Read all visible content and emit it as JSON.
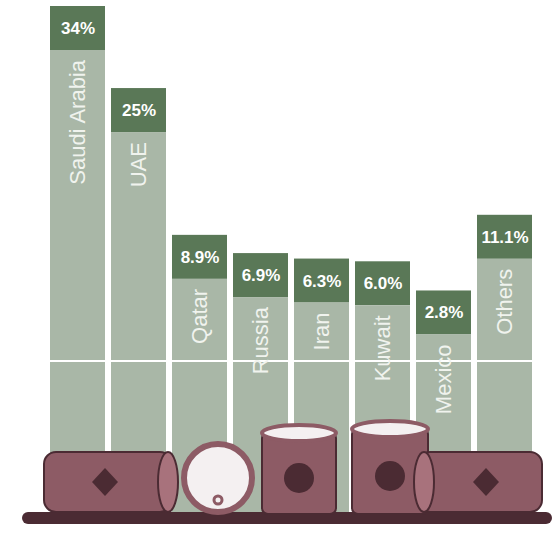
{
  "chart_data": {
    "type": "bar",
    "categories": [
      "Saudi Arabia",
      "UAE",
      "Qatar",
      "Russia",
      "Iran",
      "Kuwait",
      "Mexico",
      "Others"
    ],
    "values": [
      34,
      25,
      8.9,
      6.9,
      6.3,
      6.0,
      2.8,
      11.1
    ],
    "value_labels": [
      "34%",
      "25%",
      "8.9%",
      "6.9%",
      "6.3%",
      "6.0%",
      "2.8%",
      "11.1%"
    ],
    "color": "#a9b7a7",
    "ylim": [
      0,
      34
    ],
    "data_labels": true,
    "tick_labels": false
  }
}
